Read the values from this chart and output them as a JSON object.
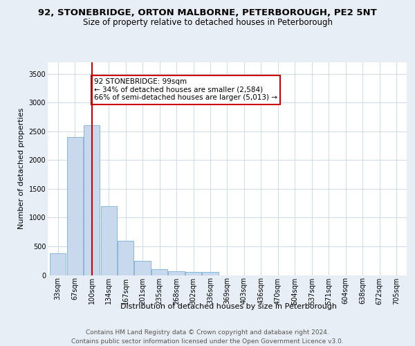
{
  "title1": "92, STONEBRIDGE, ORTON MALBORNE, PETERBOROUGH, PE2 5NT",
  "title2": "Size of property relative to detached houses in Peterborough",
  "xlabel": "Distribution of detached houses by size in Peterborough",
  "ylabel": "Number of detached properties",
  "categories": [
    "33sqm",
    "67sqm",
    "100sqm",
    "134sqm",
    "167sqm",
    "201sqm",
    "235sqm",
    "268sqm",
    "302sqm",
    "336sqm",
    "369sqm",
    "403sqm",
    "436sqm",
    "470sqm",
    "504sqm",
    "537sqm",
    "571sqm",
    "604sqm",
    "638sqm",
    "672sqm",
    "705sqm"
  ],
  "values": [
    380,
    2400,
    2600,
    1200,
    600,
    250,
    100,
    65,
    60,
    50,
    0,
    0,
    0,
    0,
    0,
    0,
    0,
    0,
    0,
    0,
    0
  ],
  "bar_color": "#c8d9ee",
  "bar_edge_color": "#7aaed4",
  "vline_x_index": 2,
  "vline_color": "#cc0000",
  "annotation_text": "92 STONEBRIDGE: 99sqm\n← 34% of detached houses are smaller (2,584)\n66% of semi-detached houses are larger (5,013) →",
  "annotation_box_color": "white",
  "annotation_box_edge_color": "#cc0000",
  "ylim": [
    0,
    3700
  ],
  "yticks": [
    0,
    500,
    1000,
    1500,
    2000,
    2500,
    3000,
    3500
  ],
  "background_color": "#e8eef5",
  "plot_bg_color": "white",
  "footer1": "Contains HM Land Registry data © Crown copyright and database right 2024.",
  "footer2": "Contains public sector information licensed under the Open Government Licence v3.0.",
  "title1_fontsize": 9.5,
  "title2_fontsize": 8.5,
  "xlabel_fontsize": 8,
  "ylabel_fontsize": 8,
  "tick_fontsize": 7,
  "annotation_fontsize": 7.5,
  "footer_fontsize": 6.5
}
